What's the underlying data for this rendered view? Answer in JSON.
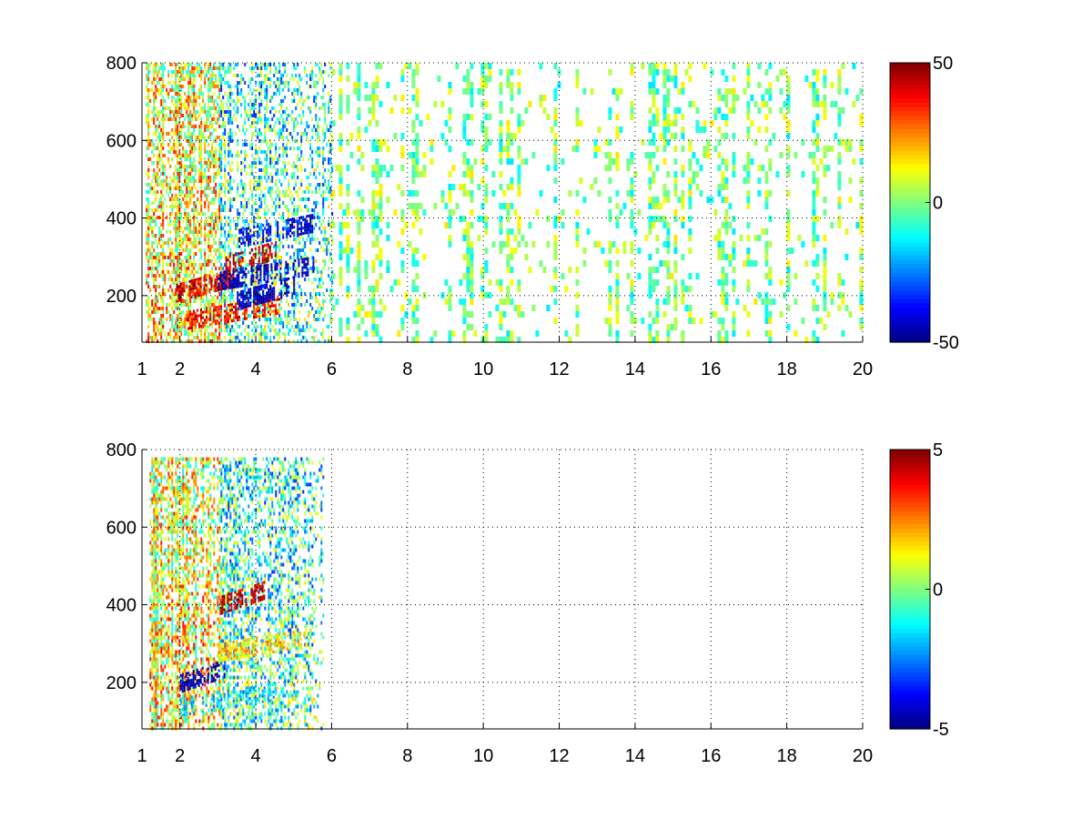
{
  "chart_data": [
    {
      "type": "heatmap",
      "title": "",
      "xlabel": "",
      "ylabel": "",
      "xlim": [
        1,
        20
      ],
      "ylim": [
        80,
        800
      ],
      "x_ticks": [
        1,
        2,
        4,
        6,
        8,
        10,
        12,
        14,
        16,
        18,
        20
      ],
      "y_ticks": [
        200,
        400,
        600,
        800
      ],
      "grid": true,
      "colormap": "jet",
      "colorbar": {
        "min": -50,
        "max": 50,
        "ticks": [
          -50,
          0,
          50
        ]
      },
      "regions": [
        {
          "x_range": [
            1.1,
            6.0
          ],
          "y_range": [
            80,
            800
          ],
          "values_range": [
            -50,
            50
          ],
          "description_value": "dense"
        },
        {
          "x_range": [
            6.0,
            20.0
          ],
          "y_range": [
            80,
            800
          ],
          "values_range": [
            -15,
            15
          ],
          "description_value": "sparse"
        }
      ],
      "bands": [
        {
          "x_range": [
            1.9,
            3.4
          ],
          "y_center": 230,
          "value": 40
        },
        {
          "x_range": [
            2.2,
            4.6
          ],
          "y_center": 160,
          "value": 35
        },
        {
          "x_range": [
            3.2,
            4.5
          ],
          "y_center": 300,
          "value": 45
        },
        {
          "x_range": [
            3.0,
            5.5
          ],
          "y_center": 260,
          "value": -45
        },
        {
          "x_range": [
            3.5,
            5.5
          ],
          "y_center": 370,
          "value": -40
        },
        {
          "x_range": [
            3.5,
            5.0
          ],
          "y_center": 210,
          "value": -45
        }
      ]
    },
    {
      "type": "heatmap",
      "title": "",
      "xlabel": "",
      "ylabel": "",
      "xlim": [
        1,
        20
      ],
      "ylim": [
        80,
        800
      ],
      "x_ticks": [
        1,
        2,
        4,
        6,
        8,
        10,
        12,
        14,
        16,
        18,
        20
      ],
      "y_ticks": [
        200,
        400,
        600,
        800
      ],
      "grid": true,
      "colormap": "jet",
      "colorbar": {
        "min": -5,
        "max": 5,
        "ticks": [
          -5,
          0,
          5
        ]
      },
      "regions": [
        {
          "x_range": [
            1.2,
            5.8
          ],
          "y_range": [
            80,
            780
          ],
          "values_range": [
            -5,
            5
          ],
          "description_value": "dense"
        }
      ],
      "bands": [
        {
          "x_range": [
            3.0,
            4.2
          ],
          "y_center": 420,
          "value": 4.5
        },
        {
          "x_range": [
            2.0,
            3.2
          ],
          "y_center": 220,
          "value": -4.5
        },
        {
          "x_range": [
            2.0,
            4.5
          ],
          "y_center": 160,
          "value": -1.5
        },
        {
          "x_range": [
            3.0,
            5.5
          ],
          "y_center": 300,
          "value": 1.5
        }
      ]
    }
  ]
}
